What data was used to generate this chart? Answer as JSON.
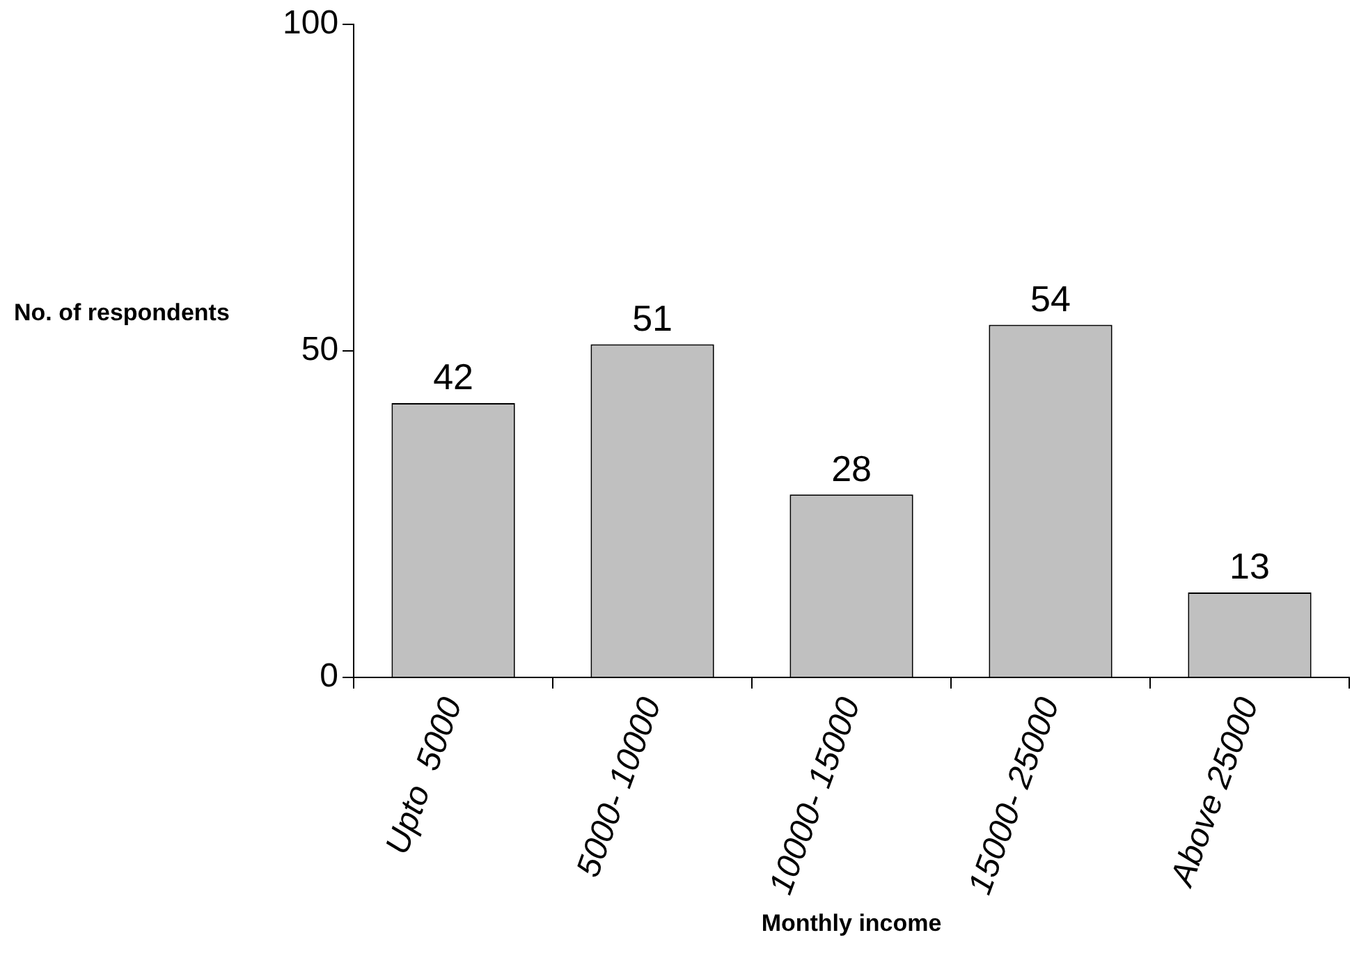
{
  "chart_data": {
    "type": "bar",
    "xlabel": "Monthly income",
    "ylabel": "No. of respondents",
    "categories": [
      "Upto  5000",
      "5000- 10000",
      "10000- 15000",
      "15000- 25000",
      "Above 25000"
    ],
    "values": [
      42,
      51,
      28,
      54,
      13
    ],
    "color": "#c0c0c0",
    "ylim": [
      0,
      100
    ],
    "yticks": [
      0,
      50,
      100
    ],
    "grid": false,
    "legend": false,
    "data_labels": true
  }
}
